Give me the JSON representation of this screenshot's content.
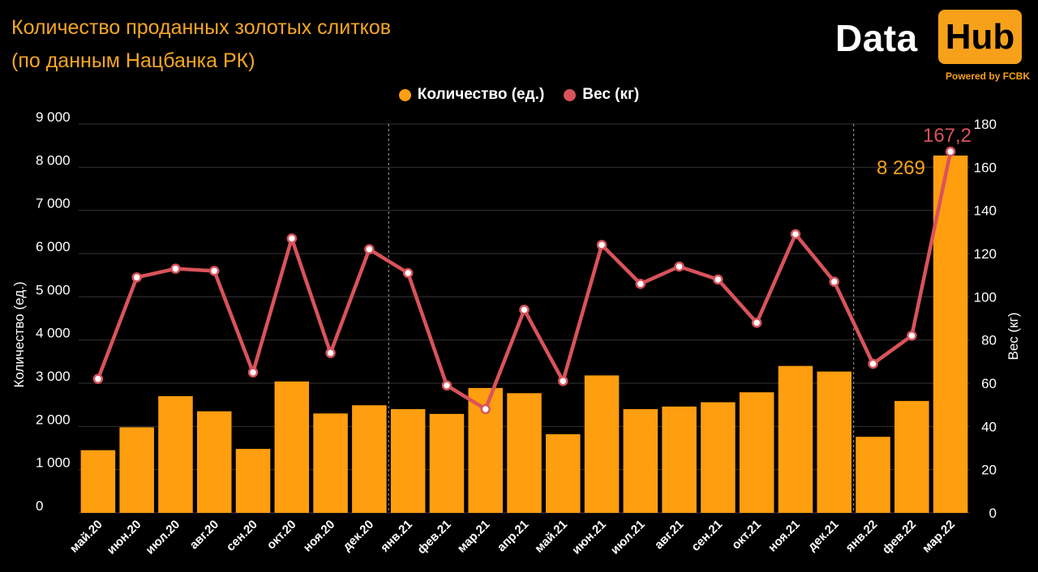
{
  "title_line1": "Количество проданных золотых слитков",
  "title_line2": "(по данным Нацбанка РК)",
  "logo": {
    "data": "Data",
    "hub": "Hub",
    "powered": "Powered by FCBK"
  },
  "colors": {
    "bars": "#FF9E0F",
    "line": "#D9535B",
    "accent": "#F7A11A",
    "background": "#000000"
  },
  "chart_data": {
    "type": "bar",
    "categories": [
      "май.20",
      "июн.20",
      "июл.20",
      "авг.20",
      "сен.20",
      "окт.20",
      "ноя.20",
      "дек.20",
      "янв.21",
      "фев.21",
      "мар.21",
      "апр.21",
      "май.21",
      "июн.21",
      "июл.21",
      "авг.21",
      "сен.21",
      "окт.21",
      "ноя.21",
      "дек.21",
      "янв.22",
      "фев.22",
      "мар.22"
    ],
    "series": [
      {
        "name": "Количество (ед.)",
        "type": "bar",
        "axis": "left",
        "values": [
          1450,
          1980,
          2700,
          2350,
          1480,
          3040,
          2300,
          2490,
          2400,
          2290,
          2890,
          2770,
          1820,
          3180,
          2400,
          2460,
          2560,
          2790,
          3400,
          3270,
          1760,
          2590,
          8269
        ]
      },
      {
        "name": "Вес (кг)",
        "type": "line",
        "axis": "right",
        "values": [
          62,
          109,
          113,
          112,
          65,
          127,
          74,
          122,
          111,
          59,
          48,
          94,
          61,
          124,
          106,
          114,
          108,
          88,
          129,
          107,
          69,
          82,
          167.2
        ]
      }
    ],
    "ylabel_left": "Количество (ед.)",
    "ylabel_right": "Вес (кг)",
    "ylim_left": [
      0,
      9000
    ],
    "ylim_right": [
      0,
      180
    ],
    "yticks_left": [
      "0",
      "1 000",
      "2 000",
      "3 000",
      "4 000",
      "5 000",
      "6 000",
      "7 000",
      "8 000",
      "9 000"
    ],
    "yticks_right": [
      "0",
      "20",
      "40",
      "60",
      "80",
      "100",
      "120",
      "140",
      "160",
      "180"
    ],
    "annotations": [
      {
        "series": "Количество (ед.)",
        "category": "мар.22",
        "text": "8 269"
      },
      {
        "series": "Вес (кг)",
        "category": "мар.22",
        "text": "167,2"
      }
    ],
    "year_separators_after": [
      "дек.20",
      "дек.21"
    ],
    "grid": true,
    "legend_position": "top-center"
  }
}
